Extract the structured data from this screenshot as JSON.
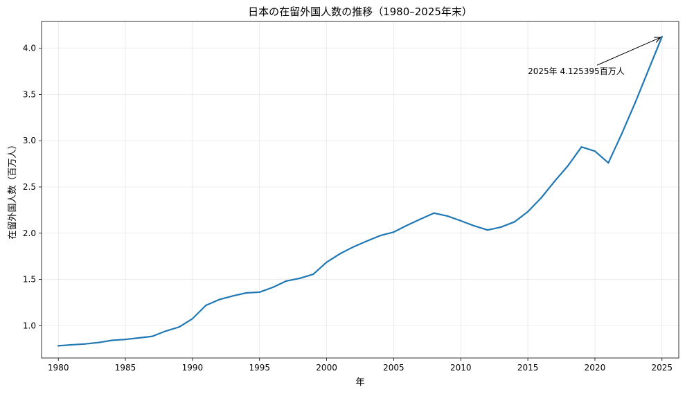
{
  "chart_data": {
    "type": "line",
    "title": "日本の在留外国人数の推移（1980–2025年末）",
    "xlabel": "年",
    "ylabel": "在留外国人数（百万人）",
    "xlim": [
      1978.75,
      2026.25
    ],
    "ylim": [
      0.65,
      4.29
    ],
    "xticks": [
      1980,
      1985,
      1990,
      1995,
      2000,
      2005,
      2010,
      2015,
      2020,
      2025
    ],
    "yticks": [
      1.0,
      1.5,
      2.0,
      2.5,
      3.0,
      3.5,
      4.0
    ],
    "ytick_labels": [
      "1.0",
      "1.5",
      "2.0",
      "2.5",
      "3.0",
      "3.5",
      "4.0"
    ],
    "grid": true,
    "series": [
      {
        "color": "#1f77b4",
        "x": [
          1980,
          1981,
          1982,
          1983,
          1984,
          1985,
          1986,
          1987,
          1988,
          1989,
          1990,
          1991,
          1992,
          1993,
          1994,
          1995,
          1996,
          1997,
          1998,
          1999,
          2000,
          2001,
          2002,
          2003,
          2004,
          2005,
          2006,
          2007,
          2008,
          2009,
          2010,
          2011,
          2012,
          2013,
          2014,
          2015,
          2016,
          2017,
          2018,
          2019,
          2020,
          2021,
          2022,
          2023,
          2024,
          2025
        ],
        "y": [
          0.782,
          0.793,
          0.802,
          0.817,
          0.841,
          0.851,
          0.867,
          0.884,
          0.941,
          0.985,
          1.075,
          1.219,
          1.282,
          1.321,
          1.354,
          1.362,
          1.415,
          1.483,
          1.512,
          1.556,
          1.686,
          1.778,
          1.852,
          1.915,
          1.974,
          2.012,
          2.085,
          2.153,
          2.217,
          2.186,
          2.134,
          2.079,
          2.034,
          2.066,
          2.122,
          2.232,
          2.383,
          2.562,
          2.731,
          2.933,
          2.887,
          2.761,
          3.075,
          3.411,
          3.769,
          4.125
        ]
      }
    ],
    "annotation": {
      "text": "2025年 4.125395百万人",
      "target": [
        2025,
        4.125
      ],
      "text_at": [
        2015,
        3.72
      ]
    }
  }
}
